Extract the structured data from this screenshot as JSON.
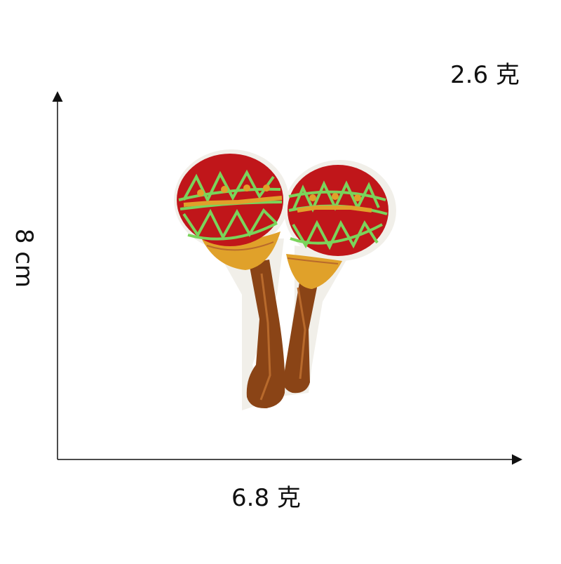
{
  "labels": {
    "top_right": "2.6 克",
    "left_vertical": "8 cm",
    "bottom": "6.8 克"
  },
  "image": {
    "subject_icon": "maracas-patch",
    "colors": {
      "red": "#c0161a",
      "green": "#7ad45b",
      "gold": "#e0a12a",
      "brown": "#8a4416",
      "edge": "#f1efe9"
    }
  }
}
